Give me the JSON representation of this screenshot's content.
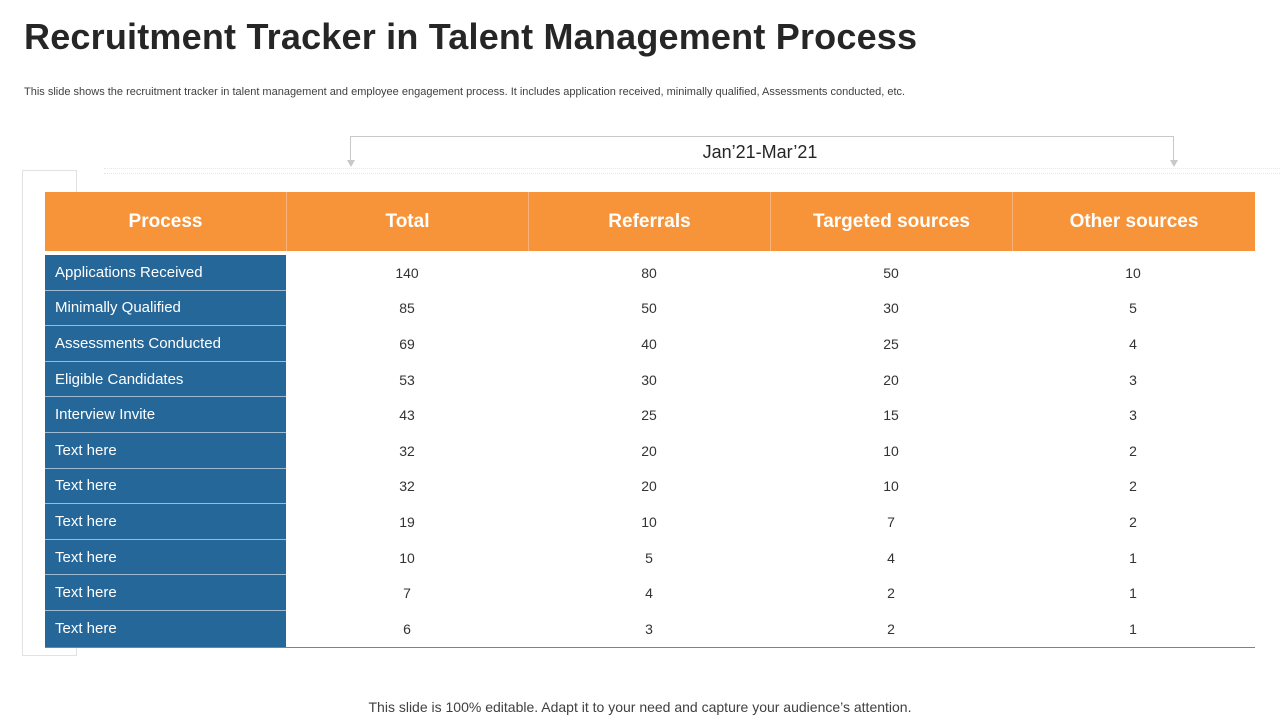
{
  "title": "Recruitment Tracker in Talent Management Process",
  "subtitle": "This slide shows the recruitment tracker in talent management and employee engagement process. It includes application received, minimally qualified, Assessments conducted, etc.",
  "period": "Jan’21-Mar’21",
  "table": {
    "headers": [
      "Process",
      "Total",
      "Referrals",
      "Targeted sources",
      "Other sources"
    ],
    "rows": [
      {
        "label": "Applications Received",
        "values": [
          "140",
          "80",
          "50",
          "10"
        ]
      },
      {
        "label": "Minimally Qualified",
        "values": [
          "85",
          "50",
          "30",
          "5"
        ]
      },
      {
        "label": "Assessments Conducted",
        "values": [
          "69",
          "40",
          "25",
          "4"
        ]
      },
      {
        "label": "Eligible Candidates",
        "values": [
          "53",
          "30",
          "20",
          "3"
        ]
      },
      {
        "label": "Interview Invite",
        "values": [
          "43",
          "25",
          "15",
          "3"
        ]
      },
      {
        "label": "Text here",
        "values": [
          "32",
          "20",
          "10",
          "2"
        ]
      },
      {
        "label": "Text here",
        "values": [
          "32",
          "20",
          "10",
          "2"
        ]
      },
      {
        "label": "Text here",
        "values": [
          "19",
          "10",
          "7",
          "2"
        ]
      },
      {
        "label": "Text here",
        "values": [
          "10",
          "5",
          "4",
          "1"
        ]
      },
      {
        "label": "Text here",
        "values": [
          "7",
          "4",
          "2",
          "1"
        ]
      },
      {
        "label": "Text here",
        "values": [
          "6",
          "3",
          "2",
          "1"
        ]
      }
    ]
  },
  "footer": "This slide is 100% editable. Adapt it to your need and capture your audience’s attention.",
  "colors": {
    "header_orange": "#f7943a",
    "row_label_blue": "#266799"
  }
}
